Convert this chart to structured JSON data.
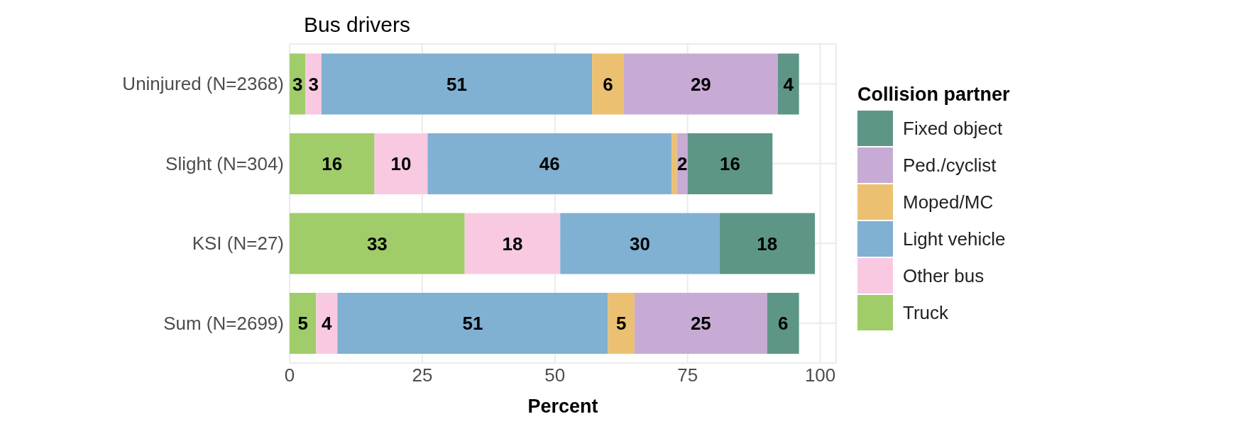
{
  "chart_data": {
    "type": "bar",
    "orientation": "horizontal",
    "stacked": true,
    "title": "Bus drivers",
    "xlabel": "Percent",
    "legend_title": "Collision partner",
    "legend": "right",
    "grid": true,
    "categories": [
      "Uninjured (N=2368)",
      "Slight (N=304)",
      "KSI (N=27)",
      "Sum (N=2699)"
    ],
    "xlim": [
      0,
      103
    ],
    "xticks": [
      0,
      25,
      50,
      75,
      100
    ],
    "series": [
      {
        "name": "Truck",
        "color": "#a1cc6a",
        "values": [
          3,
          16,
          33,
          5
        ],
        "value_labels": [
          "3",
          "16",
          "33",
          "5"
        ]
      },
      {
        "name": "Other bus",
        "color": "#f9c9e2",
        "values": [
          3,
          10,
          18,
          4
        ],
        "value_labels": [
          "3",
          "10",
          "18",
          "4"
        ]
      },
      {
        "name": "Light vehicle",
        "color": "#80b0d2",
        "values": [
          51,
          46,
          30,
          51
        ],
        "value_labels": [
          "51",
          "46",
          "30",
          "51"
        ]
      },
      {
        "name": "Moped/MC",
        "color": "#ebc171",
        "values": [
          6,
          1,
          null,
          5
        ],
        "value_labels": [
          "6",
          null,
          null,
          "5"
        ]
      },
      {
        "name": "Ped./cyclist",
        "color": "#c7abd4",
        "values": [
          29,
          2,
          null,
          25
        ],
        "value_labels": [
          "29",
          "2",
          null,
          "25"
        ]
      },
      {
        "name": "Fixed object",
        "color": "#5d9686",
        "values": [
          4,
          16,
          18,
          6
        ],
        "value_labels": [
          "4",
          "16",
          "18",
          "6"
        ]
      }
    ]
  }
}
